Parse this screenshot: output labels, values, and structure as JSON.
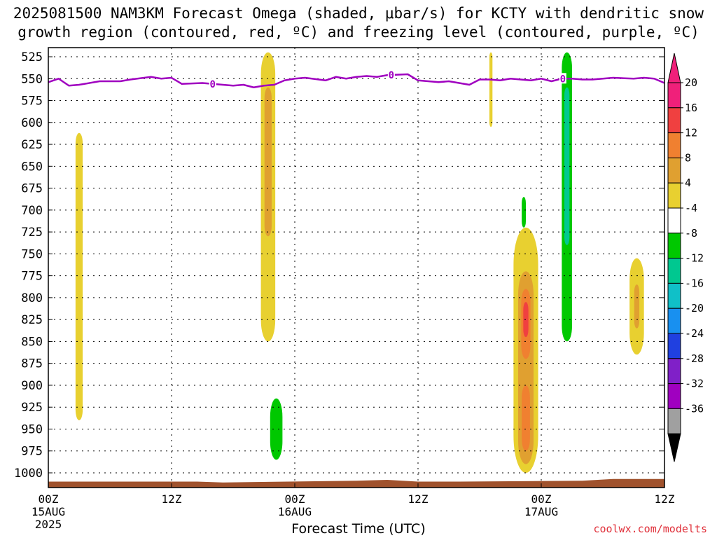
{
  "title_line1": "2025081500 NAM3KM Forecast Omega (shaded, μbar/s) for KCTY with dendritic snow",
  "title_line2": "growth region (contoured, red, ºC) and freezing level (contoured, purple, ºC)",
  "xlabel": "Forecast Time (UTC)",
  "credit": "coolwx.com/modelts",
  "chart_data": {
    "type": "heatmap",
    "title": "2025081500 NAM3KM Forecast Omega (shaded, μbar/s) for KCTY with dendritic snow growth region (contoured, red, ºC) and freezing level (contoured, purple, ºC)",
    "xlabel": "Forecast Time (UTC)",
    "ylabel": "",
    "xlim_hours": [
      0,
      60
    ],
    "ylim_hpa": [
      1010,
      520
    ],
    "y_ticks": [
      525,
      550,
      575,
      600,
      625,
      650,
      675,
      700,
      725,
      750,
      775,
      800,
      825,
      850,
      875,
      900,
      925,
      950,
      975,
      1000
    ],
    "x_ticks": [
      {
        "hour": 0,
        "label": "00Z",
        "date": "15AUG",
        "year": "2025"
      },
      {
        "hour": 12,
        "label": "12Z",
        "date": "",
        "year": ""
      },
      {
        "hour": 24,
        "label": "00Z",
        "date": "16AUG",
        "year": ""
      },
      {
        "hour": 36,
        "label": "12Z",
        "date": "",
        "year": ""
      },
      {
        "hour": 48,
        "label": "00Z",
        "date": "17AUG",
        "year": ""
      },
      {
        "hour": 60,
        "label": "12Z",
        "date": "",
        "year": ""
      }
    ],
    "grid": true,
    "colorbar": {
      "levels": [
        20,
        16,
        12,
        8,
        4,
        -4,
        -8,
        -12,
        -16,
        -20,
        -24,
        -28,
        -32,
        -36
      ],
      "colors": [
        "#f0207a",
        "#f04040",
        "#f08030",
        "#e0a030",
        "#e8d030",
        "#ffffff",
        "#00c800",
        "#00c890",
        "#10c0c8",
        "#1890f0",
        "#2040e0",
        "#8020c8",
        "#a000c0",
        "#a0a0a0"
      ],
      "top_arrow_color": "#f0207a",
      "bottom_arrow_color": "#000000"
    },
    "freezing_level": {
      "color": "#a000c0",
      "label": "0",
      "hours": [
        0,
        1,
        2,
        3,
        5,
        7,
        8,
        10,
        11,
        12,
        13,
        15,
        16,
        18,
        19,
        20,
        21,
        22,
        23,
        24,
        25,
        27,
        28,
        29,
        30,
        31,
        32,
        33,
        35,
        36,
        38,
        39,
        40,
        41,
        42,
        43,
        44,
        45,
        46,
        47,
        48,
        49,
        50,
        51,
        52,
        53,
        55,
        57,
        58,
        59,
        60
      ],
      "pressure": [
        554,
        550,
        558,
        557,
        553,
        553,
        551,
        548,
        550,
        549,
        556,
        555,
        556,
        558,
        557,
        560,
        558,
        557,
        552,
        550,
        549,
        552,
        548,
        550,
        548,
        547,
        548,
        546,
        545,
        552,
        554,
        553,
        555,
        557,
        551,
        551,
        552,
        550,
        551,
        552,
        550,
        553,
        550,
        550,
        551,
        551,
        549,
        550,
        549,
        550,
        555
      ]
    },
    "omega_features": [
      {
        "name": "w-plume-hr3",
        "level": 4,
        "hour_center": 3.0,
        "hour_halfwidth": 0.35,
        "p_top": 612,
        "p_bottom": 940
      },
      {
        "name": "w-plume-hr21-upper",
        "level": 4,
        "hour_center": 21.4,
        "hour_halfwidth": 0.7,
        "p_top": 520,
        "p_bottom": 850
      },
      {
        "name": "w-plume-hr21-core",
        "level": 8,
        "hour_center": 21.4,
        "hour_halfwidth": 0.35,
        "p_top": 560,
        "p_bottom": 730
      },
      {
        "name": "g-blob-hr19-5",
        "level": -4,
        "hour_center": 19.5,
        "hour_halfwidth": 0.8,
        "p_top": 888,
        "p_bottom": 995
      },
      {
        "name": "g-blob-hr22",
        "level": -4,
        "hour_center": 22.2,
        "hour_halfwidth": 1.0,
        "p_top": 895,
        "p_bottom": 998
      },
      {
        "name": "g-core-hr22",
        "level": -8,
        "hour_center": 22.2,
        "hour_halfwidth": 0.6,
        "p_top": 915,
        "p_bottom": 985
      },
      {
        "name": "w-streak-hr43",
        "level": 4,
        "hour_center": 43.1,
        "hour_halfwidth": 0.15,
        "p_top": 520,
        "p_bottom": 605
      },
      {
        "name": "g-blob-hr46",
        "level": -4,
        "hour_center": 46.3,
        "hour_halfwidth": 0.45,
        "p_top": 663,
        "p_bottom": 738
      },
      {
        "name": "c-core-hr46",
        "level": -8,
        "hour_center": 46.3,
        "hour_halfwidth": 0.2,
        "p_top": 685,
        "p_bottom": 720
      },
      {
        "name": "g-streak-hr44-5",
        "level": -4,
        "hour_center": 44.5,
        "hour_halfwidth": 0.35,
        "p_top": 870,
        "p_bottom": 985
      },
      {
        "name": "w-column-hr46-5",
        "level": 4,
        "hour_center": 46.5,
        "hour_halfwidth": 1.2,
        "p_top": 720,
        "p_bottom": 1000
      },
      {
        "name": "o-column-hr46-5",
        "level": 8,
        "hour_center": 46.5,
        "hour_halfwidth": 0.75,
        "p_top": 770,
        "p_bottom": 990
      },
      {
        "name": "r-column-hr46-5",
        "level": 12,
        "hour_center": 46.5,
        "hour_halfwidth": 0.45,
        "p_top": 790,
        "p_bottom": 870
      },
      {
        "name": "m-core-hr46-5",
        "level": 16,
        "hour_center": 46.5,
        "hour_halfwidth": 0.25,
        "p_top": 805,
        "p_bottom": 845
      },
      {
        "name": "o-lower-hr46-5",
        "level": 12,
        "hour_center": 46.5,
        "hour_halfwidth": 0.4,
        "p_top": 900,
        "p_bottom": 975
      },
      {
        "name": "g-column-hr50-5",
        "level": -4,
        "hour_center": 50.5,
        "hour_halfwidth": 0.75,
        "p_top": 520,
        "p_bottom": 860
      },
      {
        "name": "t-column-hr50-5",
        "level": -8,
        "hour_center": 50.5,
        "hour_halfwidth": 0.5,
        "p_top": 520,
        "p_bottom": 850
      },
      {
        "name": "c-core-hr50-5",
        "level": -12,
        "hour_center": 50.5,
        "hour_halfwidth": 0.25,
        "p_top": 560,
        "p_bottom": 740
      },
      {
        "name": "g-lower-hr51",
        "level": -4,
        "hour_center": 51.2,
        "hour_halfwidth": 0.9,
        "p_top": 860,
        "p_bottom": 985
      },
      {
        "name": "g-blob-hr53",
        "level": -4,
        "hour_center": 53.8,
        "hour_halfwidth": 0.55,
        "p_top": 765,
        "p_bottom": 860
      },
      {
        "name": "w-blob-hr57",
        "level": 4,
        "hour_center": 57.3,
        "hour_halfwidth": 0.7,
        "p_top": 755,
        "p_bottom": 865
      },
      {
        "name": "o-core-hr57",
        "level": 8,
        "hour_center": 57.3,
        "hour_halfwidth": 0.25,
        "p_top": 785,
        "p_bottom": 835
      }
    ],
    "terrain": {
      "color": "#a0522d",
      "hours": [
        0,
        14.5,
        17,
        30,
        33,
        36,
        40,
        52,
        55,
        60
      ],
      "pressure": [
        1010,
        1010,
        1011,
        1009,
        1008,
        1010,
        1010,
        1009,
        1007,
        1007
      ]
    }
  }
}
